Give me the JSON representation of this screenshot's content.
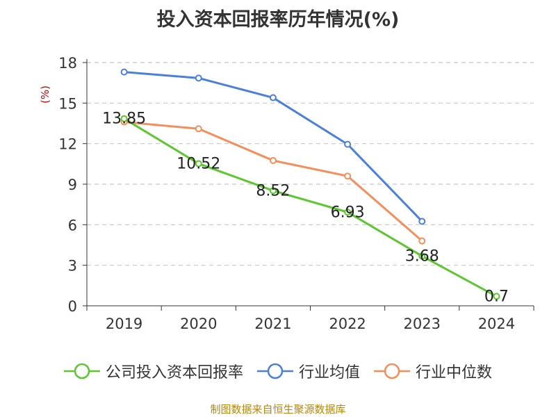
{
  "chart_data": {
    "type": "line",
    "title": "投入资本回报率历年情况(%)",
    "ylabel": "(%)",
    "xlabel": "",
    "categories": [
      "2019",
      "2020",
      "2021",
      "2022",
      "2023",
      "2024"
    ],
    "ylim": [
      0,
      18
    ],
    "yticks": [
      0,
      3,
      6,
      9,
      12,
      15,
      18
    ],
    "grid": true,
    "legend_position": "bottom",
    "series": [
      {
        "name": "公司投入资本回报率",
        "color": "#5cc72e",
        "values": [
          13.85,
          10.52,
          8.52,
          6.93,
          3.68,
          0.7
        ],
        "show_labels": true,
        "labels": [
          "13.85",
          "10.52",
          "8.52",
          "6.93",
          "3.68",
          "0.7"
        ]
      },
      {
        "name": "行业均值",
        "color": "#4a7fdb",
        "values": [
          17.3,
          16.85,
          15.4,
          11.95,
          6.25,
          null
        ],
        "show_labels": false
      },
      {
        "name": "行业中位数",
        "color": "#f58e5a",
        "values": [
          13.6,
          13.1,
          10.75,
          9.6,
          4.8,
          null
        ],
        "show_labels": false
      }
    ]
  },
  "source": "制图数据来自恒生聚源数据库"
}
